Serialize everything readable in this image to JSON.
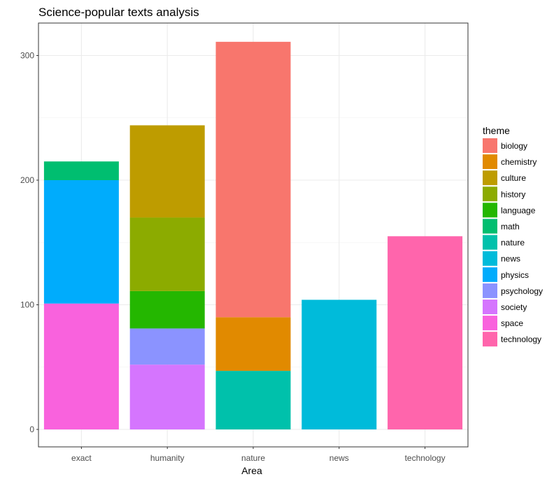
{
  "chart_data": {
    "type": "bar",
    "stacked": true,
    "title": "Science-popular texts analysis",
    "xlabel": "Area",
    "ylabel": "",
    "ylim": [
      0,
      325
    ],
    "yticks": [
      0,
      100,
      200,
      300
    ],
    "grid": true,
    "legend_placement": "right",
    "categories": [
      "exact",
      "humanity",
      "nature",
      "news",
      "technology"
    ],
    "legend": {
      "title": "theme",
      "items": [
        {
          "name": "biology",
          "color": "#F8766D"
        },
        {
          "name": "chemistry",
          "color": "#E18A00"
        },
        {
          "name": "culture",
          "color": "#BE9C00"
        },
        {
          "name": "history",
          "color": "#8CAB00"
        },
        {
          "name": "language",
          "color": "#24B700"
        },
        {
          "name": "math",
          "color": "#00BE70"
        },
        {
          "name": "nature",
          "color": "#00C1AB"
        },
        {
          "name": "news",
          "color": "#00BBDA"
        },
        {
          "name": "physics",
          "color": "#00ACFC"
        },
        {
          "name": "psychology",
          "color": "#8B93FF"
        },
        {
          "name": "society",
          "color": "#D575FE"
        },
        {
          "name": "space",
          "color": "#F962DD"
        },
        {
          "name": "technology",
          "color": "#FF65AC"
        }
      ]
    },
    "stacks": [
      {
        "category": "exact",
        "segments": [
          {
            "theme": "space",
            "value": 101
          },
          {
            "theme": "physics",
            "value": 99
          },
          {
            "theme": "math",
            "value": 15
          }
        ]
      },
      {
        "category": "humanity",
        "segments": [
          {
            "theme": "society",
            "value": 52
          },
          {
            "theme": "psychology",
            "value": 29
          },
          {
            "theme": "language",
            "value": 30
          },
          {
            "theme": "history",
            "value": 59
          },
          {
            "theme": "culture",
            "value": 74
          }
        ]
      },
      {
        "category": "nature",
        "segments": [
          {
            "theme": "nature",
            "value": 47
          },
          {
            "theme": "chemistry",
            "value": 43
          },
          {
            "theme": "biology",
            "value": 221
          }
        ]
      },
      {
        "category": "news",
        "segments": [
          {
            "theme": "news",
            "value": 104
          }
        ]
      },
      {
        "category": "technology",
        "segments": [
          {
            "theme": "technology",
            "value": 155
          }
        ]
      }
    ]
  }
}
